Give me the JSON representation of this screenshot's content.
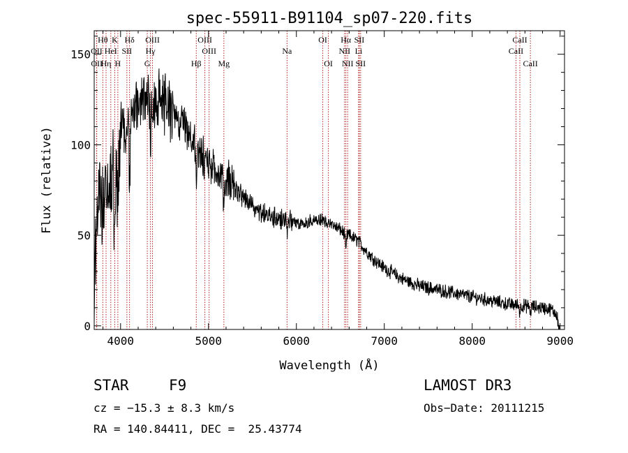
{
  "chart_data": {
    "type": "line",
    "title": "spec-55911-B91104_sp07-220.fits",
    "xlabel": "Wavelength (Å)",
    "ylabel": "Flux (relative)",
    "xlim": [
      3700,
      9050
    ],
    "ylim": [
      -2,
      163
    ],
    "xticks": [
      4000,
      5000,
      6000,
      7000,
      8000,
      9000
    ],
    "yticks": [
      0,
      50,
      100,
      150
    ],
    "xtick_labels": [
      "4000",
      "5000",
      "6000",
      "7000",
      "8000",
      "9000"
    ],
    "ytick_labels": [
      "0",
      "50",
      "100",
      "150"
    ],
    "line_color": "#000000",
    "marker_color": "#b02020",
    "spectrum_anchors": {
      "wavelength": [
        3700,
        3720,
        3750,
        3800,
        3850,
        3900,
        3950,
        4000,
        4050,
        4100,
        4150,
        4200,
        4300,
        4400,
        4500,
        4600,
        4700,
        4800,
        4900,
        5000,
        5100,
        5200,
        5300,
        5400,
        5500,
        5600,
        5700,
        5800,
        5900,
        6000,
        6100,
        6200,
        6300,
        6400,
        6500,
        6550,
        6600,
        6700,
        6800,
        6900,
        7000,
        7200,
        7400,
        7600,
        7800,
        8000,
        8200,
        8400,
        8600,
        8800,
        8900,
        8950,
        9000
      ],
      "flux": [
        15,
        40,
        70,
        62,
        75,
        82,
        98,
        106,
        112,
        118,
        118,
        123,
        126,
        124,
        122,
        118,
        111,
        104,
        96,
        90,
        86,
        81,
        76,
        71,
        66,
        62,
        60,
        59,
        59,
        57,
        57,
        58,
        58,
        56,
        53,
        51,
        50,
        47,
        41,
        36,
        32,
        26,
        22,
        20,
        18,
        16,
        14,
        12,
        11,
        10,
        9,
        7,
        3
      ]
    },
    "spectral_lines": [
      {
        "label": "Hθ",
        "wavelength": 3798,
        "row": 1
      },
      {
        "label": "OII",
        "wavelength": 3727,
        "row": 2
      },
      {
        "label": "OII",
        "wavelength": 3729,
        "row": 3
      },
      {
        "label": "Hη",
        "wavelength": 3835,
        "row": 3
      },
      {
        "label": "HeI",
        "wavelength": 3889,
        "row": 2
      },
      {
        "label": "K",
        "wavelength": 3934,
        "row": 1
      },
      {
        "label": "H",
        "wavelength": 3969,
        "row": 3
      },
      {
        "label": "SII",
        "wavelength": 4072,
        "row": 2
      },
      {
        "label": "Hδ",
        "wavelength": 4102,
        "row": 1
      },
      {
        "label": "OIII",
        "wavelength": 4363,
        "row": 1
      },
      {
        "label": "Hγ",
        "wavelength": 4340,
        "row": 2
      },
      {
        "label": "G",
        "wavelength": 4304,
        "row": 3
      },
      {
        "label": "Hβ",
        "wavelength": 4861,
        "row": 3
      },
      {
        "label": "OIII",
        "wavelength": 4959,
        "row": 1
      },
      {
        "label": "OIII",
        "wavelength": 5007,
        "row": 2
      },
      {
        "label": "Mg",
        "wavelength": 5175,
        "row": 3
      },
      {
        "label": "Na",
        "wavelength": 5894,
        "row": 2
      },
      {
        "label": "OI",
        "wavelength": 6300,
        "row": 1
      },
      {
        "label": "OI",
        "wavelength": 6364,
        "row": 3
      },
      {
        "label": "Hα",
        "wavelength": 6563,
        "row": 1
      },
      {
        "label": "NII",
        "wavelength": 6548,
        "row": 2
      },
      {
        "label": "NII",
        "wavelength": 6583,
        "row": 3
      },
      {
        "label": "SII",
        "wavelength": 6716,
        "row": 1
      },
      {
        "label": "Li",
        "wavelength": 6708,
        "row": 2
      },
      {
        "label": "SII",
        "wavelength": 6731,
        "row": 3
      },
      {
        "label": "CaII",
        "wavelength": 8542,
        "row": 1
      },
      {
        "label": "CaII",
        "wavelength": 8498,
        "row": 2
      },
      {
        "label": "CaII",
        "wavelength": 8662,
        "row": 3
      }
    ]
  },
  "info": {
    "object_class": "STAR",
    "subclass": "F9",
    "survey": "LAMOST DR3",
    "redshift_line": "cz = −15.3 ± 8.3 km/s",
    "obs_date_line": "Obs−Date: 20111215",
    "coords_line": "RA = 140.84411, DEC =  25.43774"
  }
}
